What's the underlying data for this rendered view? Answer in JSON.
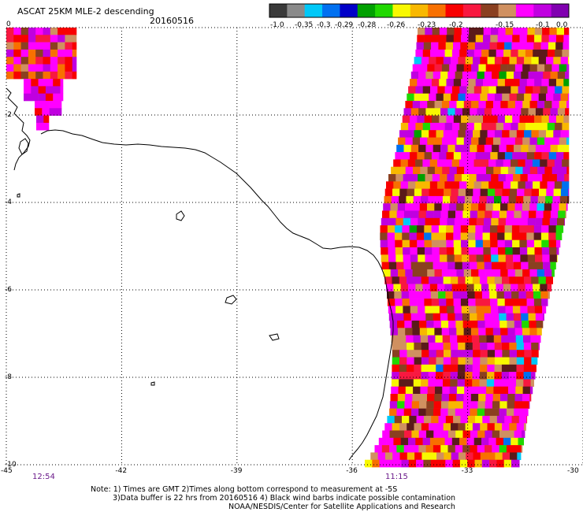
{
  "header": {
    "title": "ASCAT 25KM MLE-2 descending",
    "date": "20160516"
  },
  "colorbar": {
    "colors": [
      "#3a3a3a",
      "#8a8a8a",
      "#00c8f8",
      "#0070f0",
      "#0000c8",
      "#00a000",
      "#20d800",
      "#f8f800",
      "#f8b800",
      "#f87000",
      "#f80000",
      "#f81840",
      "#8a4020",
      "#d09060",
      "#ff00ff",
      "#c000e0",
      "#8000b0"
    ],
    "labels": [
      "-1.0",
      "-0.35",
      "-0.3",
      "-0.29",
      "-0.28",
      "-0.26",
      "-0.23",
      "-0.2",
      "-0.15",
      "-0.1",
      "0.0"
    ]
  },
  "axes": {
    "lat_labels": [
      "0",
      "-2",
      "-4",
      "-6",
      "-8",
      "-10"
    ],
    "lon_labels": [
      "-45",
      "-42",
      "-39",
      "-36",
      "-33",
      "-30"
    ],
    "lon_range": [
      -45,
      -30
    ],
    "lat_range": [
      -10,
      0
    ],
    "grid": "dotted"
  },
  "times": {
    "left": "12:54",
    "right": "11:15"
  },
  "notes": [
    "Note: 1) Times are GMT 2)Times along bottom correspond to measurement at -5S",
    "3)Data buffer is 22 hrs from 20160516 4) Black wind barbs indicate possible contamination",
    "NOAA/NESDIS/Center for Satellite Applications and Research"
  ],
  "swaths": [
    {
      "name": "northwest-swath-fragment",
      "lon_span": [
        -45,
        -43.1
      ],
      "lat_span": [
        -2.2,
        0
      ]
    },
    {
      "name": "main-descending-swath",
      "lon_span": [
        -36.2,
        -30
      ],
      "lat_span": [
        -10,
        0
      ]
    }
  ]
}
